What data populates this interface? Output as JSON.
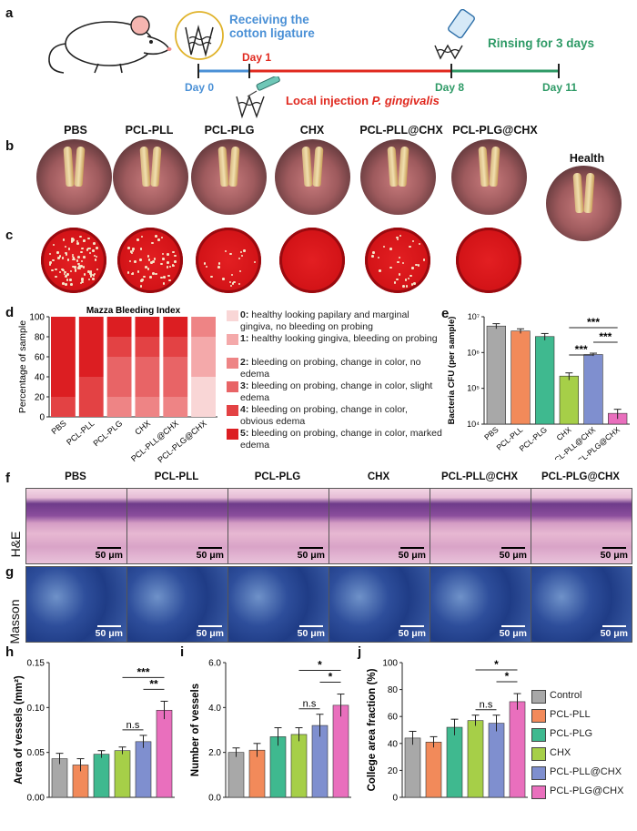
{
  "panels": {
    "a": "a",
    "b": "b",
    "c": "c",
    "d": "d",
    "e": "e",
    "f": "f",
    "g": "g",
    "h": "h",
    "i": "i",
    "j": "j"
  },
  "timeline": {
    "receiving": "Receiving the\ncotton ligature",
    "rinsing": "Rinsing for 3 days",
    "injection_prefix": "Local injection ",
    "injection_species": "P. gingivalis",
    "days": [
      "Day 0",
      "Day 1",
      "Day 8",
      "Day 11"
    ],
    "colors": {
      "day0": "#4a90d6",
      "day1": "#e0281e",
      "day8": "#2e9a66"
    }
  },
  "samples": [
    "PBS",
    "PCL-PLL",
    "PCL-PLG",
    "CHX",
    "PCL-PLL@CHX",
    "PCL-PLG@CHX"
  ],
  "health_label": "Health",
  "histology": {
    "row_he": "H&E",
    "row_masson": "Masson",
    "scale_bar": "50 μm"
  },
  "mazza": {
    "title": "Mazza Bleeding Index",
    "ylabel": "Percentage of sample",
    "yticks": [
      "0",
      "20",
      "40",
      "60",
      "80",
      "100"
    ],
    "legend": [
      {
        "bold": "0:",
        "text": " healthy looking papilary and marginal gingiva, no bleeding on probing",
        "color": "#f9d6d6"
      },
      {
        "bold": "1:",
        "text": " healthy looking gingiva, bleeding on probing",
        "color": "#f4a9aa"
      },
      {
        "bold": "2:",
        "text": " bleeding on probing, change in color, no edema",
        "color": "#ee8485"
      },
      {
        "bold": "3:",
        "text": " bleeding on probing, change in color, slight edema",
        "color": "#e86466"
      },
      {
        "bold": "4:",
        "text": " bleeding on probing, change in color, obvious edema",
        "color": "#e34244"
      },
      {
        "bold": "5:",
        "text": " bleeding on probing, change in color, marked edema",
        "color": "#dc1e22"
      }
    ]
  },
  "cfu": {
    "ylabel": "Bacteria CFU (per sample)",
    "yticks": [
      "10⁴",
      "10⁵",
      "10⁶",
      "10⁷"
    ],
    "sig": [
      "***",
      "***",
      "***"
    ]
  },
  "bars": {
    "groups": [
      "Control",
      "PCL-PLL",
      "PCL-PLG",
      "CHX",
      "PCL-PLL@CHX",
      "PCL-PLG@CHX"
    ],
    "colors": [
      "#a8a8a8",
      "#f28a5a",
      "#3fb98f",
      "#a6cf48",
      "#7f8fcf",
      "#e96fbd"
    ],
    "h_ylabel": "Area of vessels (mm²)",
    "h_yticks": [
      "0.00",
      "0.05",
      "0.10",
      "0.15"
    ],
    "h_sig": [
      "***",
      "**",
      "n.s"
    ],
    "i_ylabel": "Number of vessels",
    "i_yticks": [
      "0.0",
      "2.0",
      "4.0",
      "6.0"
    ],
    "i_sig": [
      "*",
      "*",
      "n.s"
    ],
    "j_ylabel": "College area fraction (%)",
    "j_yticks": [
      "0",
      "20",
      "40",
      "60",
      "80",
      "100"
    ],
    "j_sig": [
      "*",
      "*",
      "n.s"
    ]
  },
  "chart_data": [
    {
      "type": "bar",
      "title": "Mazza Bleeding Index",
      "ylabel": "Percentage of sample",
      "ylim": [
        0,
        100
      ],
      "categories": [
        "PBS",
        "PCL-PLL",
        "PCL-PLG",
        "CHX",
        "PCL-PLL@CHX",
        "PCL-PLG@CHX"
      ],
      "stacked": true,
      "series": [
        {
          "name": "0",
          "values": [
            0,
            0,
            0,
            0,
            0,
            40
          ]
        },
        {
          "name": "1",
          "values": [
            0,
            0,
            0,
            0,
            0,
            40
          ]
        },
        {
          "name": "2",
          "values": [
            0,
            0,
            20,
            20,
            20,
            20
          ]
        },
        {
          "name": "3",
          "values": [
            0,
            0,
            40,
            40,
            40,
            0
          ]
        },
        {
          "name": "4",
          "values": [
            20,
            40,
            20,
            20,
            20,
            0
          ]
        },
        {
          "name": "5",
          "values": [
            80,
            60,
            20,
            20,
            20,
            0
          ]
        }
      ]
    },
    {
      "type": "bar",
      "ylabel": "Bacteria CFU (per sample)",
      "log_scale": true,
      "ylim": [
        10000,
        10000000
      ],
      "categories": [
        "PBS",
        "PCL-PLL",
        "PCL-PLG",
        "CHX",
        "PCL-PLL@CHX",
        "PCL-PLG@CHX"
      ],
      "values": [
        5500000,
        4000000,
        2800000,
        220000,
        880000,
        20000
      ],
      "errors": [
        900000,
        600000,
        600000,
        50000,
        80000,
        6000
      ],
      "colors": [
        "#a8a8a8",
        "#f28a5a",
        "#3fb98f",
        "#a6cf48",
        "#7f8fcf",
        "#e96fbd"
      ]
    },
    {
      "type": "bar",
      "ylabel": "Area of vessels (mm²)",
      "ylim": [
        0,
        0.15
      ],
      "categories": [
        "Control",
        "PCL-PLL",
        "PCL-PLG",
        "CHX",
        "PCL-PLL@CHX",
        "PCL-PLG@CHX"
      ],
      "values": [
        0.043,
        0.036,
        0.048,
        0.052,
        0.062,
        0.097
      ],
      "errors": [
        0.006,
        0.007,
        0.004,
        0.004,
        0.007,
        0.01
      ]
    },
    {
      "type": "bar",
      "ylabel": "Number of vessels",
      "ylim": [
        0,
        6
      ],
      "categories": [
        "Control",
        "PCL-PLL",
        "PCL-PLG",
        "CHX",
        "PCL-PLL@CHX",
        "PCL-PLG@CHX"
      ],
      "values": [
        2.0,
        2.1,
        2.7,
        2.8,
        3.2,
        4.1
      ],
      "errors": [
        0.2,
        0.3,
        0.4,
        0.3,
        0.5,
        0.5
      ]
    },
    {
      "type": "bar",
      "ylabel": "College area fraction (%)",
      "ylim": [
        0,
        100
      ],
      "categories": [
        "Control",
        "PCL-PLL",
        "PCL-PLG",
        "CHX",
        "PCL-PLL@CHX",
        "PCL-PLG@CHX"
      ],
      "values": [
        44,
        41,
        52,
        57,
        55,
        71
      ],
      "errors": [
        5,
        4,
        6,
        4,
        6,
        6
      ]
    }
  ]
}
